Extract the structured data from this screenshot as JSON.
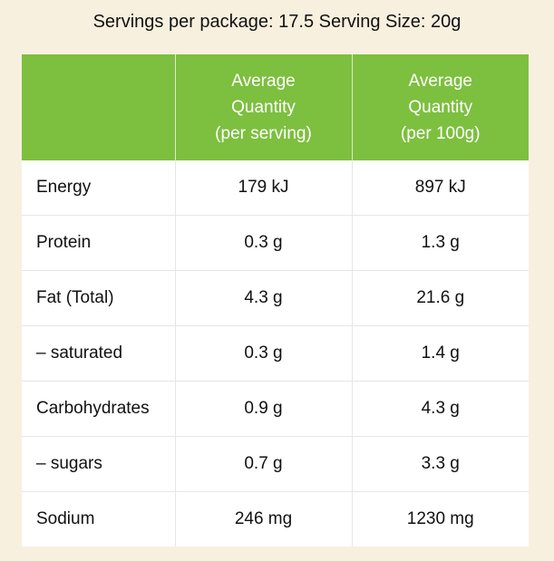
{
  "caption": "Servings per package: 17.5 Serving Size: 20g",
  "colors": {
    "header_bg": "#7dbf3f",
    "header_text": "#ffffff",
    "page_bg": "#f8f0df",
    "table_bg": "#ffffff"
  },
  "table": {
    "headers": [
      {
        "label": "",
        "lines": []
      },
      {
        "label": "Average Quantity (per serving)",
        "lines": [
          "Average",
          "Quantity",
          "(per serving)"
        ]
      },
      {
        "label": "Average Quantity (per 100g)",
        "lines": [
          "Average",
          "Quantity",
          "(per 100g)"
        ]
      }
    ],
    "rows": [
      {
        "nutrient": "Energy",
        "per_serving": "179 kJ",
        "per_100g": "897 kJ"
      },
      {
        "nutrient": "Protein",
        "per_serving": "0.3 g",
        "per_100g": "1.3 g"
      },
      {
        "nutrient": "Fat (Total)",
        "per_serving": "4.3 g",
        "per_100g": "21.6 g"
      },
      {
        "nutrient": "– saturated",
        "per_serving": "0.3 g",
        "per_100g": "1.4 g"
      },
      {
        "nutrient": "Carbohydrates",
        "per_serving": "0.9 g",
        "per_100g": "4.3 g"
      },
      {
        "nutrient": "– sugars",
        "per_serving": "0.7 g",
        "per_100g": "3.3 g"
      },
      {
        "nutrient": "Sodium",
        "per_serving": "246 mg",
        "per_100g": "1230 mg"
      }
    ]
  }
}
